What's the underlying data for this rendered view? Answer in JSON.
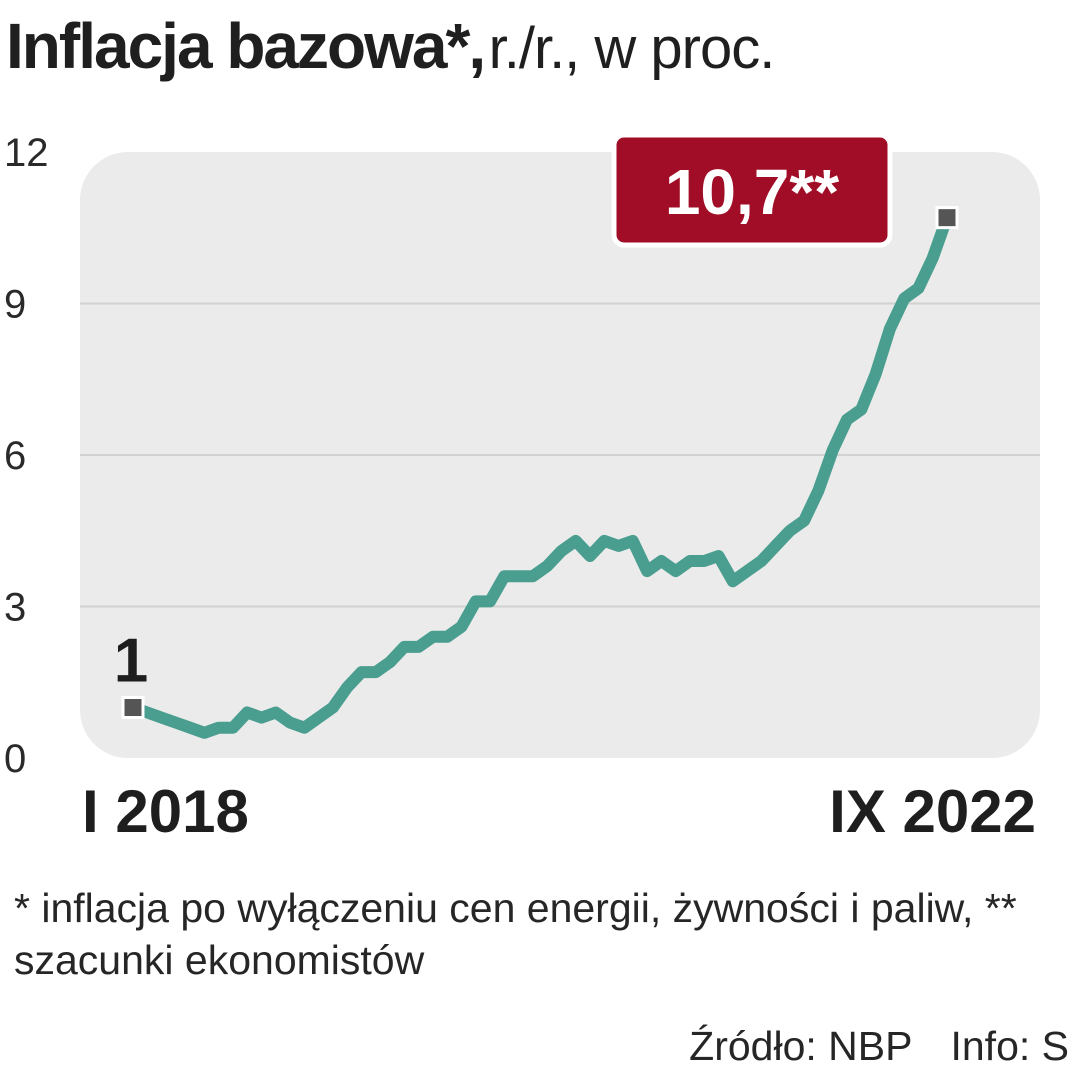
{
  "header": {
    "title": "Inflacja bazowa*,",
    "subtitle": "r./r., w proc."
  },
  "chart_data": {
    "type": "line",
    "title": "Inflacja bazowa*, r./r., w proc.",
    "xlabel": "",
    "ylabel": "",
    "ylim": [
      0,
      12
    ],
    "yticks": [
      0,
      3,
      6,
      9,
      12
    ],
    "ytick_labels": [
      "0",
      "3",
      "6",
      "9",
      "12"
    ],
    "x_start_label": "I 2018",
    "x_end_label": "IX 2022",
    "grid": true,
    "colors": {
      "line": "#4a9e8f",
      "plot_bg": "#ebebeb",
      "callout_bg": "#a10d26",
      "marker": "#555555"
    },
    "series": [
      {
        "values": [
          1.0,
          0.9,
          0.8,
          0.7,
          0.6,
          0.5,
          0.6,
          0.6,
          0.9,
          0.8,
          0.9,
          0.7,
          0.6,
          0.8,
          1.0,
          1.4,
          1.7,
          1.7,
          1.9,
          2.2,
          2.2,
          2.4,
          2.4,
          2.6,
          3.1,
          3.1,
          3.6,
          3.6,
          3.6,
          3.8,
          4.1,
          4.3,
          4.0,
          4.3,
          4.2,
          4.3,
          3.7,
          3.9,
          3.7,
          3.9,
          3.9,
          4.0,
          3.5,
          3.7,
          3.9,
          4.2,
          4.5,
          4.7,
          5.3,
          6.1,
          6.7,
          6.9,
          7.6,
          8.5,
          9.1,
          9.3,
          9.9,
          10.7
        ]
      }
    ],
    "annotations": [
      {
        "label": "1",
        "value": 1.0,
        "point": "first"
      },
      {
        "label": "10,7**",
        "value": 10.7,
        "point": "last"
      }
    ]
  },
  "footnote": "* inflacja po wyłączeniu cen energii, żywności i paliw, ** szacunki ekonomistów",
  "source": {
    "source_text": "Źródło: NBP",
    "info_text": "Info: S"
  }
}
